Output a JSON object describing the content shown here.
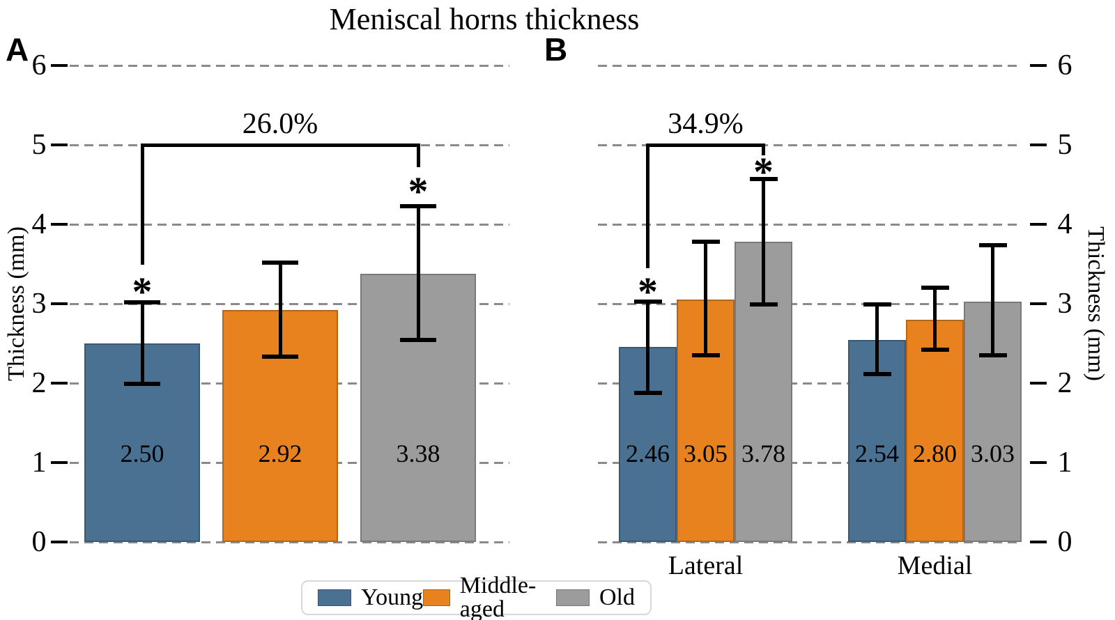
{
  "title": "Meniscal horns thickness",
  "chart_data": {
    "type": "bar",
    "title": "Meniscal horns thickness",
    "ylabel": "Thickness (mm)",
    "ylabel_right": "Thickness (mm)",
    "ylim": [
      0,
      6
    ],
    "yticks": [
      0,
      1,
      2,
      3,
      4,
      5,
      6
    ],
    "grid": "horizontal dashed gray lines at every integer",
    "legend_position": "bottom center",
    "gridline_color": "#8a8a8a",
    "series": [
      {
        "name": "Young",
        "color": "#4a7191"
      },
      {
        "name": "Middle-aged",
        "color": "#e8821e"
      },
      {
        "name": "Old",
        "color": "#9c9c9c"
      }
    ],
    "panels": [
      {
        "id": "A",
        "groups": [
          {
            "label": "",
            "bars": [
              {
                "series": "Young",
                "value": 2.5,
                "label": "2.50",
                "err": [
                  1.99,
                  3.02
                ],
                "sig": true
              },
              {
                "series": "Middle-aged",
                "value": 2.92,
                "label": "2.92",
                "err": [
                  2.33,
                  3.52
                ],
                "sig": false
              },
              {
                "series": "Old",
                "value": 3.38,
                "label": "3.38",
                "err": [
                  2.54,
                  4.23
                ],
                "sig": true
              }
            ],
            "bracket": {
              "label": "26.0%",
              "from_series": "Young",
              "to_series": "Old",
              "y": 5.0
            }
          }
        ]
      },
      {
        "id": "B",
        "groups": [
          {
            "label": "Lateral",
            "bars": [
              {
                "series": "Young",
                "value": 2.46,
                "label": "2.46",
                "err": [
                  1.88,
                  3.03
                ],
                "sig": true
              },
              {
                "series": "Middle-aged",
                "value": 3.05,
                "label": "3.05",
                "err": [
                  2.35,
                  3.78
                ],
                "sig": false
              },
              {
                "series": "Old",
                "value": 3.78,
                "label": "3.78",
                "err": [
                  2.99,
                  4.57
                ],
                "sig": true
              }
            ],
            "bracket": {
              "label": "34.9%",
              "from_series": "Young",
              "to_series": "Old",
              "y": 5.0
            }
          },
          {
            "label": "Medial",
            "bars": [
              {
                "series": "Young",
                "value": 2.54,
                "label": "2.54",
                "err": [
                  2.11,
                  2.99
                ],
                "sig": false
              },
              {
                "series": "Middle-aged",
                "value": 2.8,
                "label": "2.80",
                "err": [
                  2.42,
                  3.2
                ],
                "sig": false
              },
              {
                "series": "Old",
                "value": 3.03,
                "label": "3.03",
                "err": [
                  2.35,
                  3.74
                ],
                "sig": false
              }
            ]
          }
        ]
      }
    ],
    "annotations": {
      "significance_marker": "*",
      "panel_a_bracket_label": "26.0%",
      "panel_b_bracket_label": "34.9%"
    }
  }
}
